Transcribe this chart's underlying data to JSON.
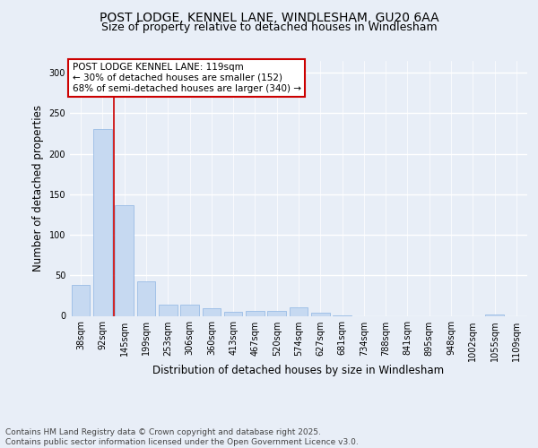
{
  "title1": "POST LODGE, KENNEL LANE, WINDLESHAM, GU20 6AA",
  "title2": "Size of property relative to detached houses in Windlesham",
  "xlabel": "Distribution of detached houses by size in Windlesham",
  "ylabel": "Number of detached properties",
  "categories": [
    "38sqm",
    "92sqm",
    "145sqm",
    "199sqm",
    "253sqm",
    "306sqm",
    "360sqm",
    "413sqm",
    "467sqm",
    "520sqm",
    "574sqm",
    "627sqm",
    "681sqm",
    "734sqm",
    "788sqm",
    "841sqm",
    "895sqm",
    "948sqm",
    "1002sqm",
    "1055sqm",
    "1109sqm"
  ],
  "values": [
    38,
    230,
    137,
    43,
    14,
    14,
    9,
    5,
    6,
    6,
    10,
    4,
    1,
    0,
    0,
    0,
    0,
    0,
    0,
    2,
    0
  ],
  "bar_color": "#c6d9f1",
  "bar_edge_color": "#8db4e2",
  "vline_color": "#cc0000",
  "annotation_text": "POST LODGE KENNEL LANE: 119sqm\n← 30% of detached houses are smaller (152)\n68% of semi-detached houses are larger (340) →",
  "annotation_box_color": "#ffffff",
  "annotation_box_edge": "#cc0000",
  "ylim": [
    0,
    315
  ],
  "yticks": [
    0,
    50,
    100,
    150,
    200,
    250,
    300
  ],
  "bg_color": "#e8eef7",
  "plot_bg_color": "#e8eef7",
  "grid_color": "#ffffff",
  "footer": "Contains HM Land Registry data © Crown copyright and database right 2025.\nContains public sector information licensed under the Open Government Licence v3.0.",
  "title_fontsize": 10,
  "subtitle_fontsize": 9,
  "tick_fontsize": 7,
  "label_fontsize": 8.5,
  "footer_fontsize": 6.5
}
